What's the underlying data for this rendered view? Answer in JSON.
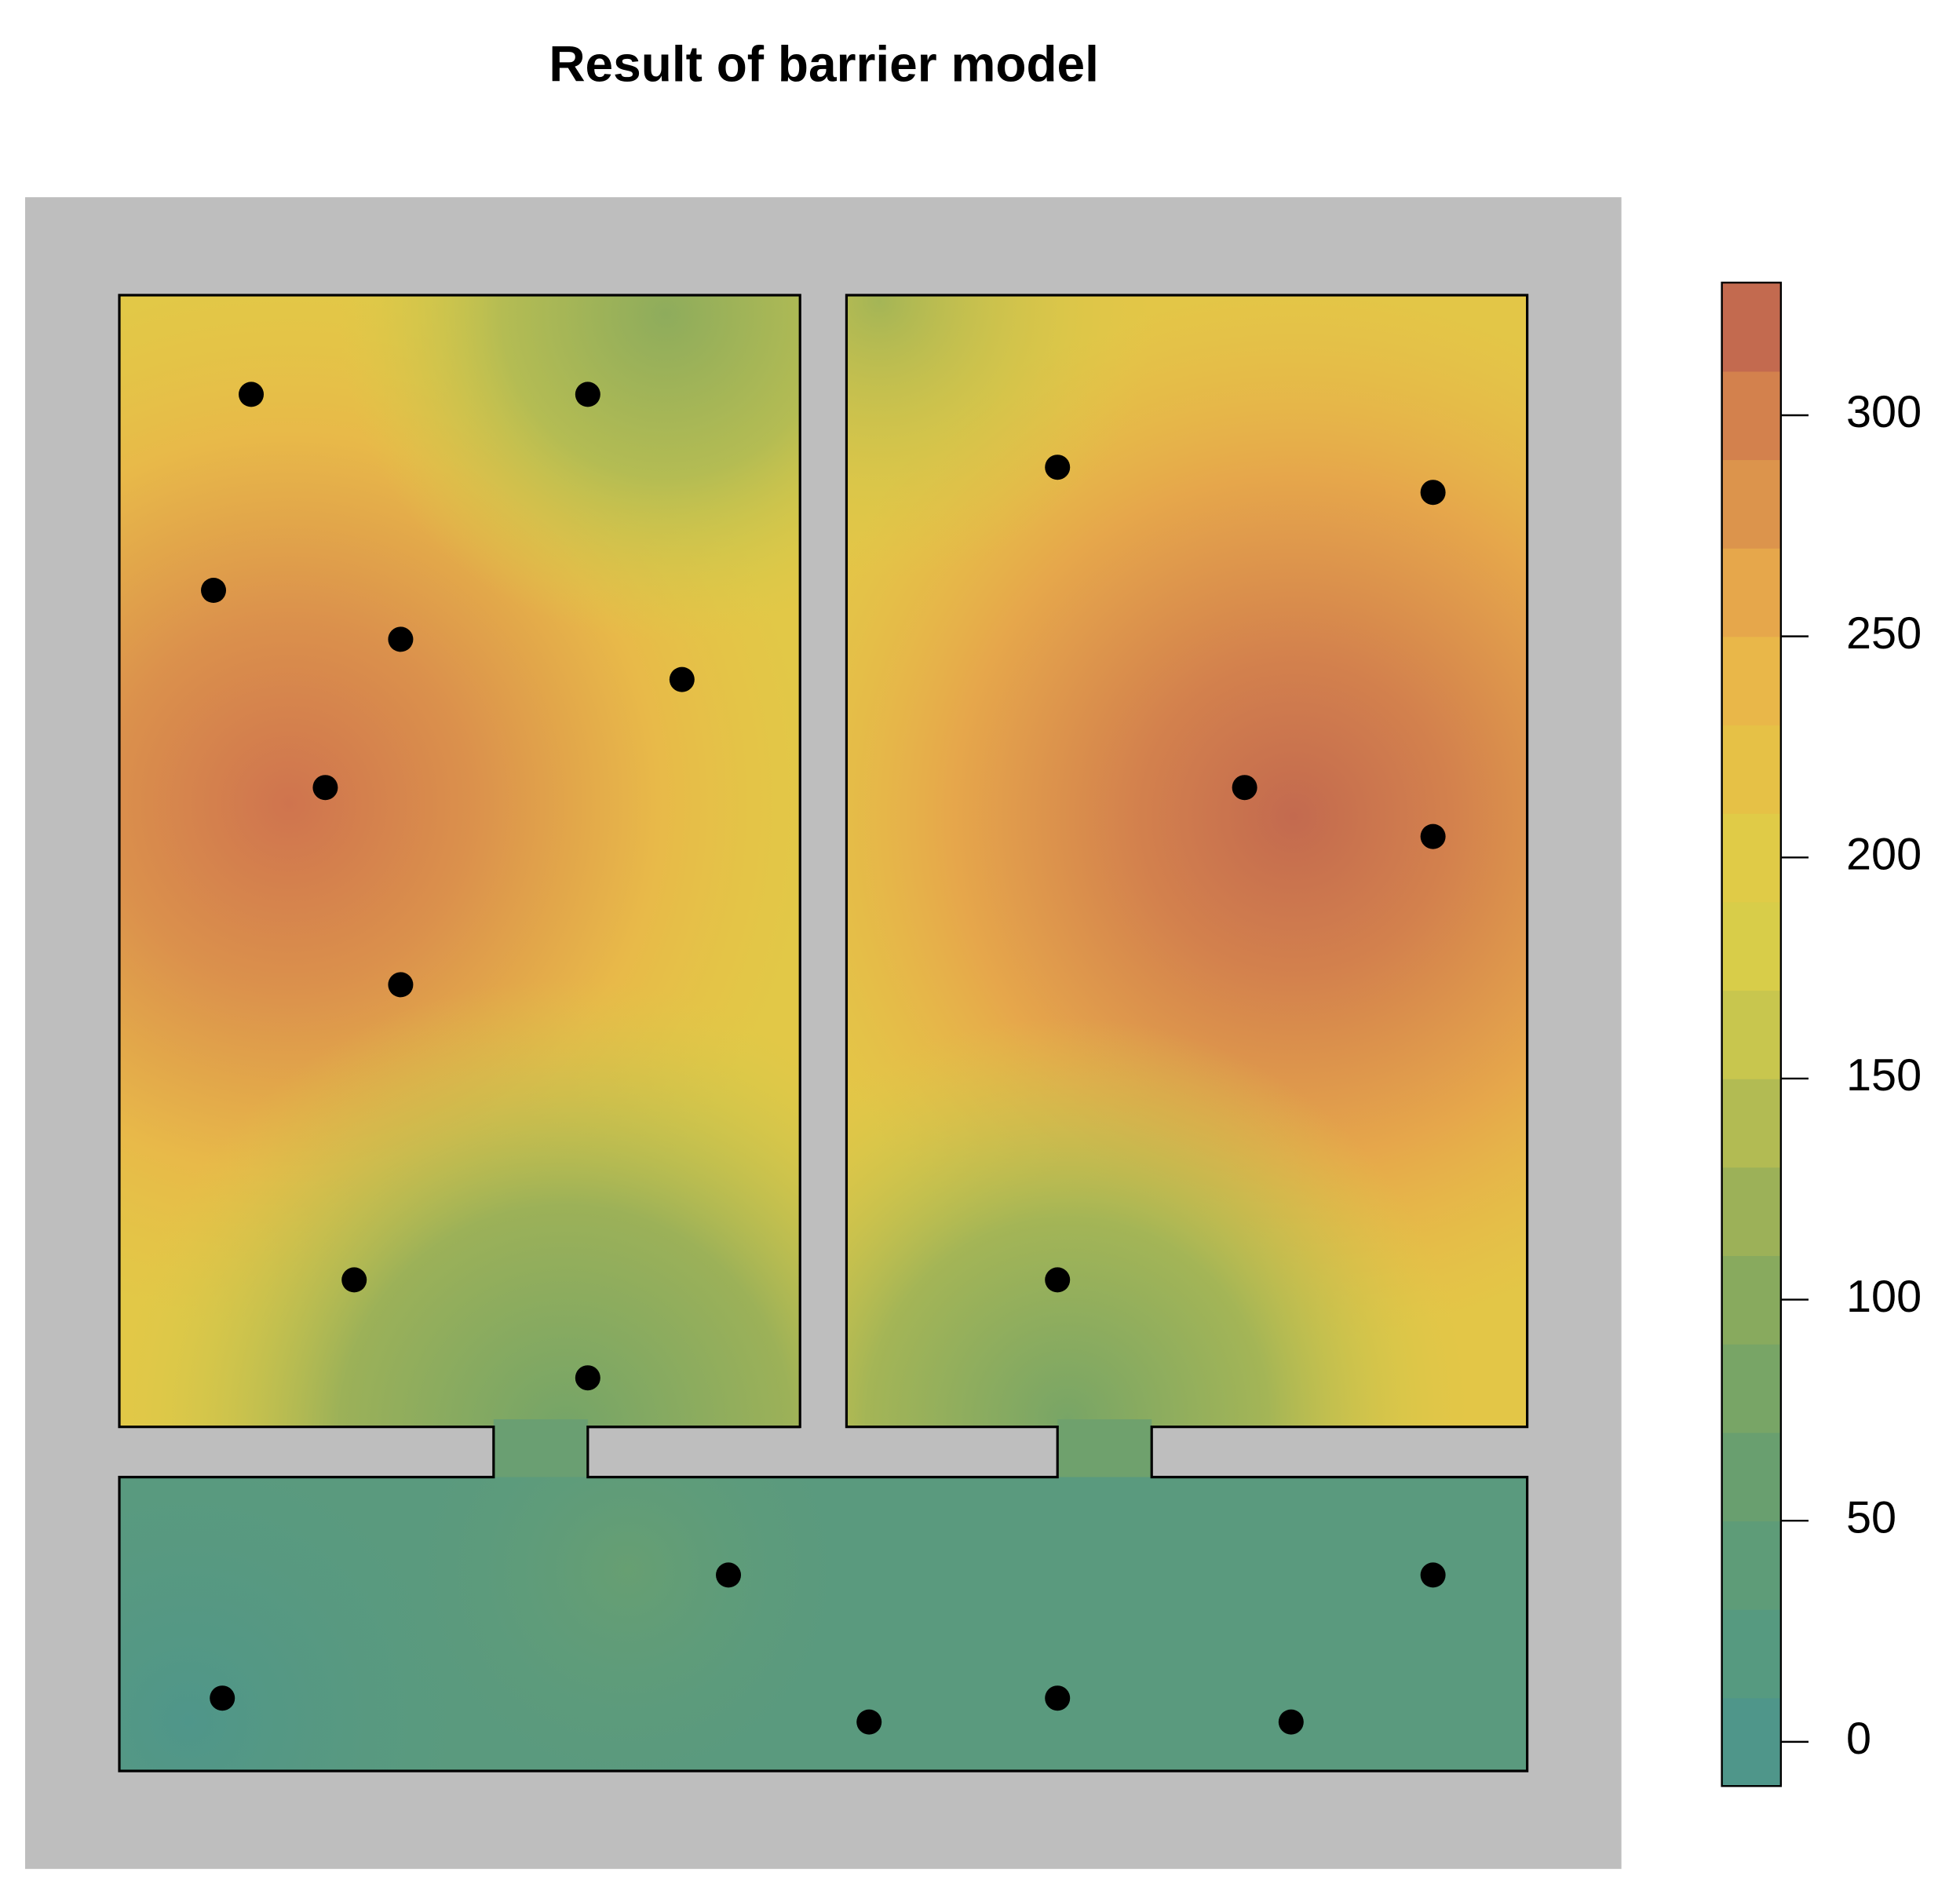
{
  "chart_data": {
    "type": "heatmap",
    "title": "Result of barrier model",
    "colorbar": {
      "lim": [
        -10,
        330
      ],
      "ticks": [
        0,
        50,
        100,
        150,
        200,
        250,
        300
      ],
      "colors": [
        "#4f968a",
        "#569a80",
        "#5e9c78",
        "#699f6f",
        "#78a566",
        "#88aa5e",
        "#9cb158",
        "#b2bb53",
        "#c8c64e",
        "#d8cd49",
        "#e0cb47",
        "#e6c146",
        "#e9b749",
        "#e6a74b",
        "#dc944c",
        "#d3814d",
        "#c36a4f"
      ]
    }
  }
}
